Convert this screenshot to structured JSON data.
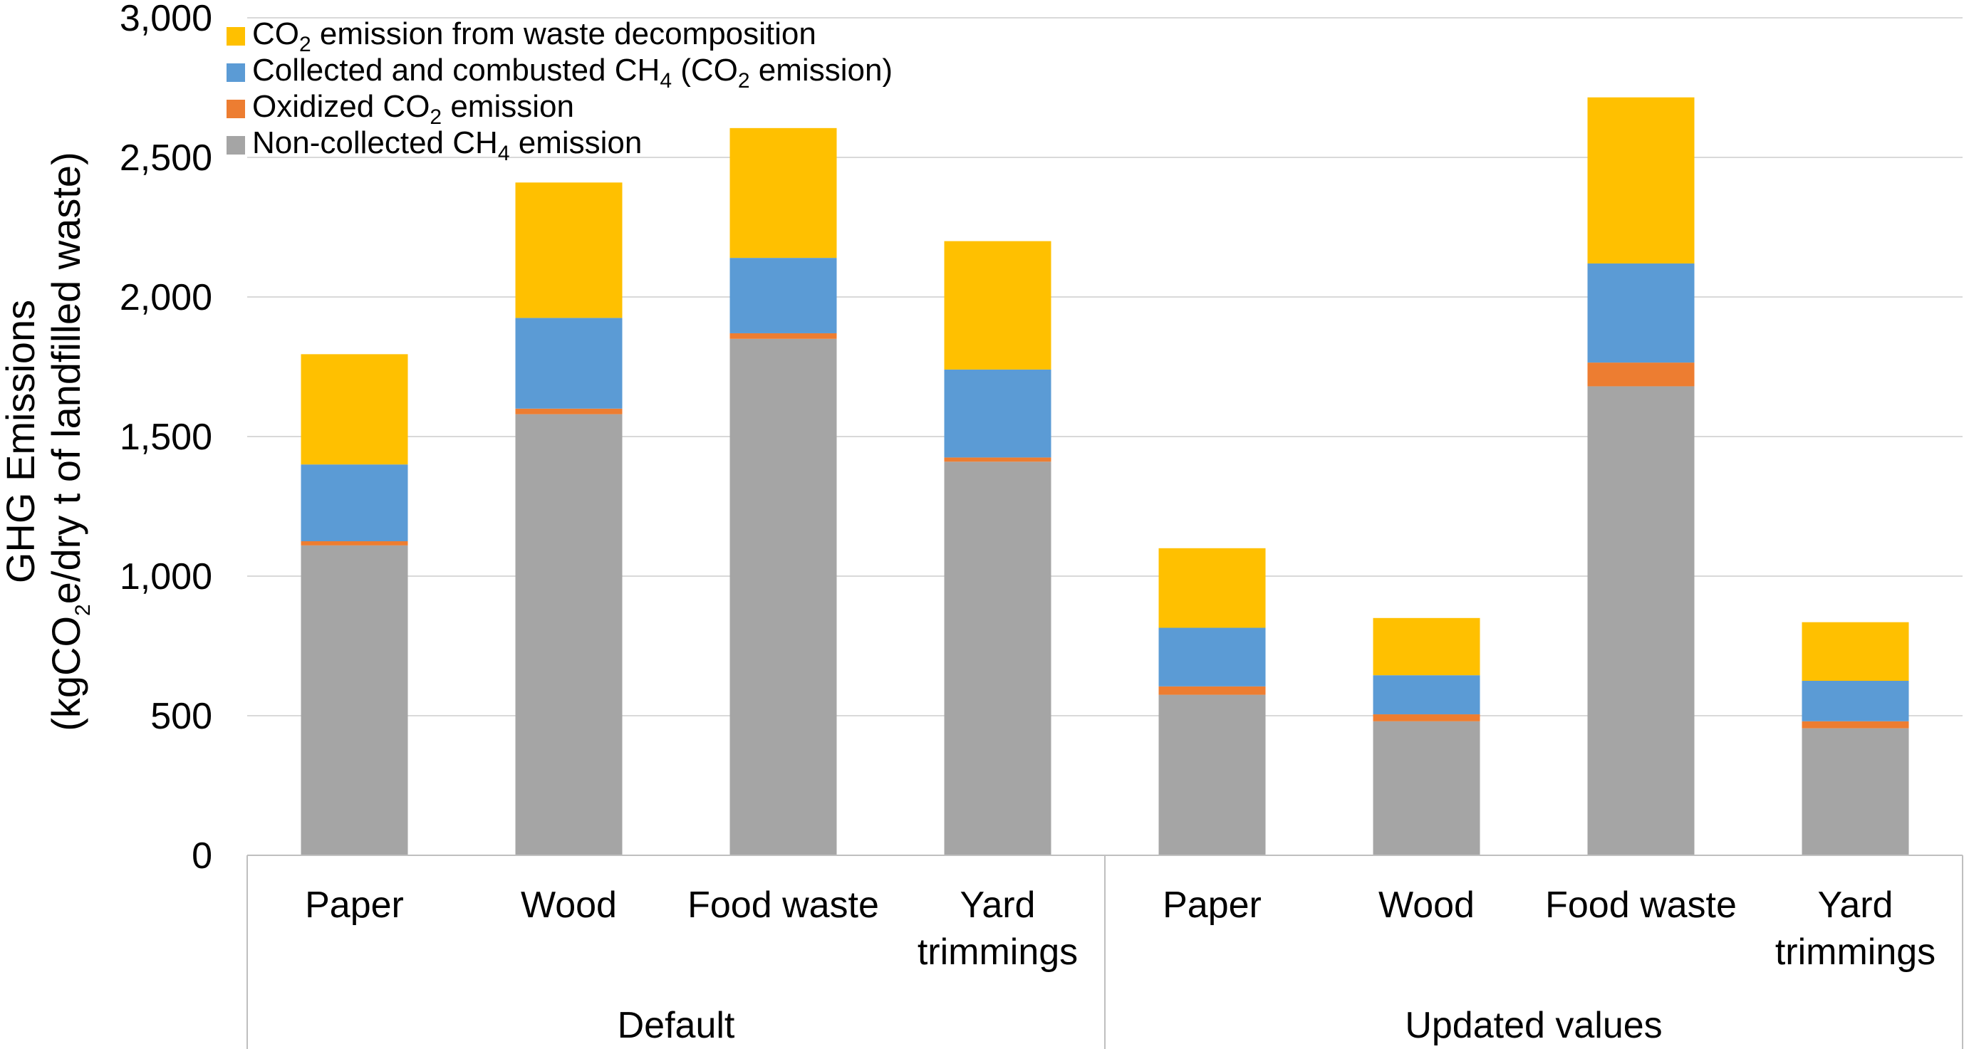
{
  "chart_data": {
    "type": "bar",
    "stacked": true,
    "ylabel": "GHG Emissions (kgCO2e/dry t of landfilled waste)",
    "ylabel_line1": "GHG Emissions",
    "ylabel_line2": {
      "pre": "(kgCO",
      "sub": "2",
      "post": "e/dry t of landfilled waste)"
    },
    "ylim": [
      0,
      3000
    ],
    "yticks": [
      0,
      500,
      1000,
      1500,
      2000,
      2500,
      3000
    ],
    "ytick_labels": [
      "0",
      "500",
      "1,000",
      "1,500",
      "2,000",
      "2,500",
      "3,000"
    ],
    "grid": true,
    "legend_position": "top-left",
    "categories": [
      "Paper",
      "Wood",
      "Food waste",
      "Yard trimmings",
      "Paper",
      "Wood",
      "Food waste",
      "Yard trimmings"
    ],
    "category_lines": [
      [
        "Paper"
      ],
      [
        "Wood"
      ],
      [
        "Food waste"
      ],
      [
        "Yard",
        "trimmings"
      ],
      [
        "Paper"
      ],
      [
        "Wood"
      ],
      [
        "Food waste"
      ],
      [
        "Yard",
        "trimmings"
      ]
    ],
    "groups": [
      {
        "label": "Default",
        "categories": [
          0,
          1,
          2,
          3
        ]
      },
      {
        "label": "Updated values",
        "categories": [
          4,
          5,
          6,
          7
        ]
      }
    ],
    "series": [
      {
        "key": "noncollected",
        "name": "Non-collected CH4 emission",
        "color": "#A5A5A5",
        "legend": [
          {
            "t": "Non-collected CH"
          },
          {
            "t": "4",
            "sub": true
          },
          {
            "t": " emission"
          }
        ],
        "values": [
          1110,
          1580,
          1850,
          1410,
          575,
          480,
          1680,
          455
        ]
      },
      {
        "key": "oxidized",
        "name": "Oxidized CO2 emission",
        "color": "#ED7D31",
        "legend": [
          {
            "t": "Oxidized CO"
          },
          {
            "t": "2",
            "sub": true
          },
          {
            "t": " emission"
          }
        ],
        "values": [
          15,
          20,
          20,
          15,
          30,
          25,
          85,
          25
        ]
      },
      {
        "key": "collected",
        "name": "Collected and combusted CH4 (CO2 emission)",
        "color": "#5B9BD5",
        "legend": [
          {
            "t": "Collected and combusted CH"
          },
          {
            "t": "4",
            "sub": true
          },
          {
            "t": " (CO"
          },
          {
            "t": "2",
            "sub": true
          },
          {
            "t": " emission)"
          }
        ],
        "values": [
          275,
          325,
          270,
          315,
          210,
          140,
          355,
          145
        ]
      },
      {
        "key": "co2decomp",
        "name": "CO2 emission from waste decomposition",
        "color": "#FFC000",
        "legend": [
          {
            "t": "CO"
          },
          {
            "t": "2",
            "sub": true
          },
          {
            "t": " emission from waste decomposition"
          }
        ],
        "values": [
          395,
          485,
          465,
          460,
          285,
          205,
          595,
          210
        ]
      }
    ],
    "legend_order": [
      "co2decomp",
      "collected",
      "oxidized",
      "noncollected"
    ]
  }
}
